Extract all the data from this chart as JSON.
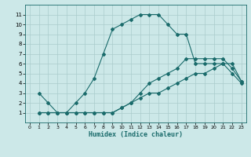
{
  "xlabel": "Humidex (Indice chaleur)",
  "bg_color": "#cce8e8",
  "grid_color": "#aacccc",
  "line_color": "#1a6b6b",
  "xlim": [
    -0.5,
    23.5
  ],
  "ylim": [
    0,
    12
  ],
  "xticks": [
    0,
    1,
    2,
    3,
    4,
    5,
    6,
    7,
    8,
    9,
    10,
    11,
    12,
    13,
    14,
    15,
    16,
    17,
    18,
    19,
    20,
    21,
    22,
    23
  ],
  "yticks": [
    1,
    2,
    3,
    4,
    5,
    6,
    7,
    8,
    9,
    10,
    11
  ],
  "line1_x": [
    1,
    2,
    3,
    4,
    5,
    6,
    7,
    8,
    9,
    10,
    11,
    12,
    13,
    14,
    15,
    16,
    17,
    18,
    19,
    20,
    21,
    22,
    23
  ],
  "line1_y": [
    3,
    2,
    1,
    1,
    2,
    3,
    4.5,
    7,
    9.5,
    10,
    10.5,
    11,
    11,
    11,
    10,
    9,
    9,
    6,
    6,
    6,
    6,
    5,
    4
  ],
  "line2_x": [
    1,
    2,
    3,
    4,
    5,
    6,
    7,
    8,
    9,
    10,
    11,
    12,
    13,
    14,
    15,
    16,
    17,
    18,
    19,
    20,
    21,
    22,
    23
  ],
  "line2_y": [
    1,
    1,
    1,
    1,
    1,
    1,
    1,
    1,
    1,
    1.5,
    2,
    2.5,
    3,
    3,
    3.5,
    4,
    4.5,
    5,
    5,
    5.5,
    6,
    6,
    4.2
  ],
  "line3_x": [
    1,
    2,
    3,
    4,
    5,
    6,
    7,
    8,
    9,
    10,
    11,
    12,
    13,
    14,
    15,
    16,
    17,
    18,
    19,
    20,
    21,
    22,
    23
  ],
  "line3_y": [
    1,
    1,
    1,
    1,
    1,
    1,
    1,
    1,
    1,
    1.5,
    2,
    3,
    4,
    4.5,
    5,
    5.5,
    6.5,
    6.5,
    6.5,
    6.5,
    6.5,
    5.5,
    4.2
  ]
}
